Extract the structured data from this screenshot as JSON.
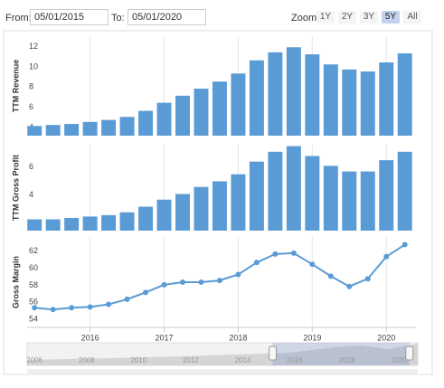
{
  "toolbar": {
    "from_label": "From:",
    "from": "05/01/2015",
    "to_label": "To:",
    "to": "05/01/2020",
    "zoom_label": "Zoom:",
    "zoom_buttons": [
      "1Y",
      "2Y",
      "3Y",
      "5Y",
      "All"
    ],
    "active_zoom": "5Y"
  },
  "chart_data": [
    {
      "type": "bar",
      "ylabel": "TTM Revenue",
      "color": "#5b9bd5",
      "x": [
        2015.25,
        2015.5,
        2015.75,
        2016.0,
        2016.25,
        2016.5,
        2016.75,
        2017.0,
        2017.25,
        2017.5,
        2017.75,
        2018.0,
        2018.25,
        2018.5,
        2018.75,
        2019.0,
        2019.25,
        2019.5,
        2019.75,
        2020.0,
        2020.25
      ],
      "values": [
        4.6,
        4.7,
        4.8,
        5.0,
        5.2,
        5.5,
        6.1,
        6.9,
        7.6,
        8.3,
        9.0,
        9.8,
        11.1,
        11.9,
        12.4,
        11.7,
        10.7,
        10.2,
        10.0,
        10.9,
        11.8
      ],
      "xlim": [
        2015.15,
        2020.4
      ],
      "ylim": [
        3.64,
        13.5
      ],
      "yticks": [
        4,
        6,
        8,
        10,
        12
      ],
      "grid": "x"
    },
    {
      "type": "bar",
      "ylabel": "TTM Gross Profit",
      "color": "#5b9bd5",
      "x": [
        2015.25,
        2015.5,
        2015.75,
        2016.0,
        2016.25,
        2016.5,
        2016.75,
        2017.0,
        2017.25,
        2017.5,
        2017.75,
        2018.0,
        2018.25,
        2018.5,
        2018.75,
        2019.0,
        2019.25,
        2019.5,
        2019.75,
        2020.0,
        2020.25
      ],
      "values": [
        2.6,
        2.6,
        2.7,
        2.8,
        2.9,
        3.1,
        3.5,
        4.0,
        4.4,
        4.9,
        5.3,
        5.8,
        6.7,
        7.4,
        7.8,
        7.1,
        6.4,
        6.0,
        6.0,
        6.8,
        7.4
      ],
      "xlim": [
        2015.15,
        2020.4
      ],
      "ylim": [
        1.8,
        7.9
      ],
      "yticks": [
        2,
        4,
        6
      ],
      "grid": "x"
    },
    {
      "type": "line",
      "ylabel": "Gross Margin",
      "color": "#5b9bd5",
      "x": [
        2015.25,
        2015.5,
        2015.75,
        2016.0,
        2016.25,
        2016.5,
        2016.75,
        2017.0,
        2017.25,
        2017.5,
        2017.75,
        2018.0,
        2018.25,
        2018.5,
        2018.75,
        2019.0,
        2019.25,
        2019.5,
        2019.75,
        2020.0,
        2020.25
      ],
      "values": [
        55.9,
        55.7,
        55.9,
        56.0,
        56.3,
        56.9,
        57.7,
        58.6,
        58.9,
        58.9,
        59.1,
        59.8,
        61.2,
        62.2,
        62.3,
        61.0,
        59.6,
        58.4,
        59.3,
        61.9,
        63.3
      ],
      "xlim": [
        2015.15,
        2020.4
      ],
      "ylim": [
        53.6,
        64.2
      ],
      "yticks": [
        54,
        56,
        58,
        60,
        62
      ],
      "xticks": [
        2016,
        2017,
        2018,
        2019,
        2020
      ],
      "grid": "x"
    }
  ],
  "navigator": {
    "xlim": [
      2005.72,
      2020.72
    ],
    "xticks": [
      2006,
      2008,
      2010,
      2012,
      2014,
      2016,
      2018,
      2020
    ]
  }
}
